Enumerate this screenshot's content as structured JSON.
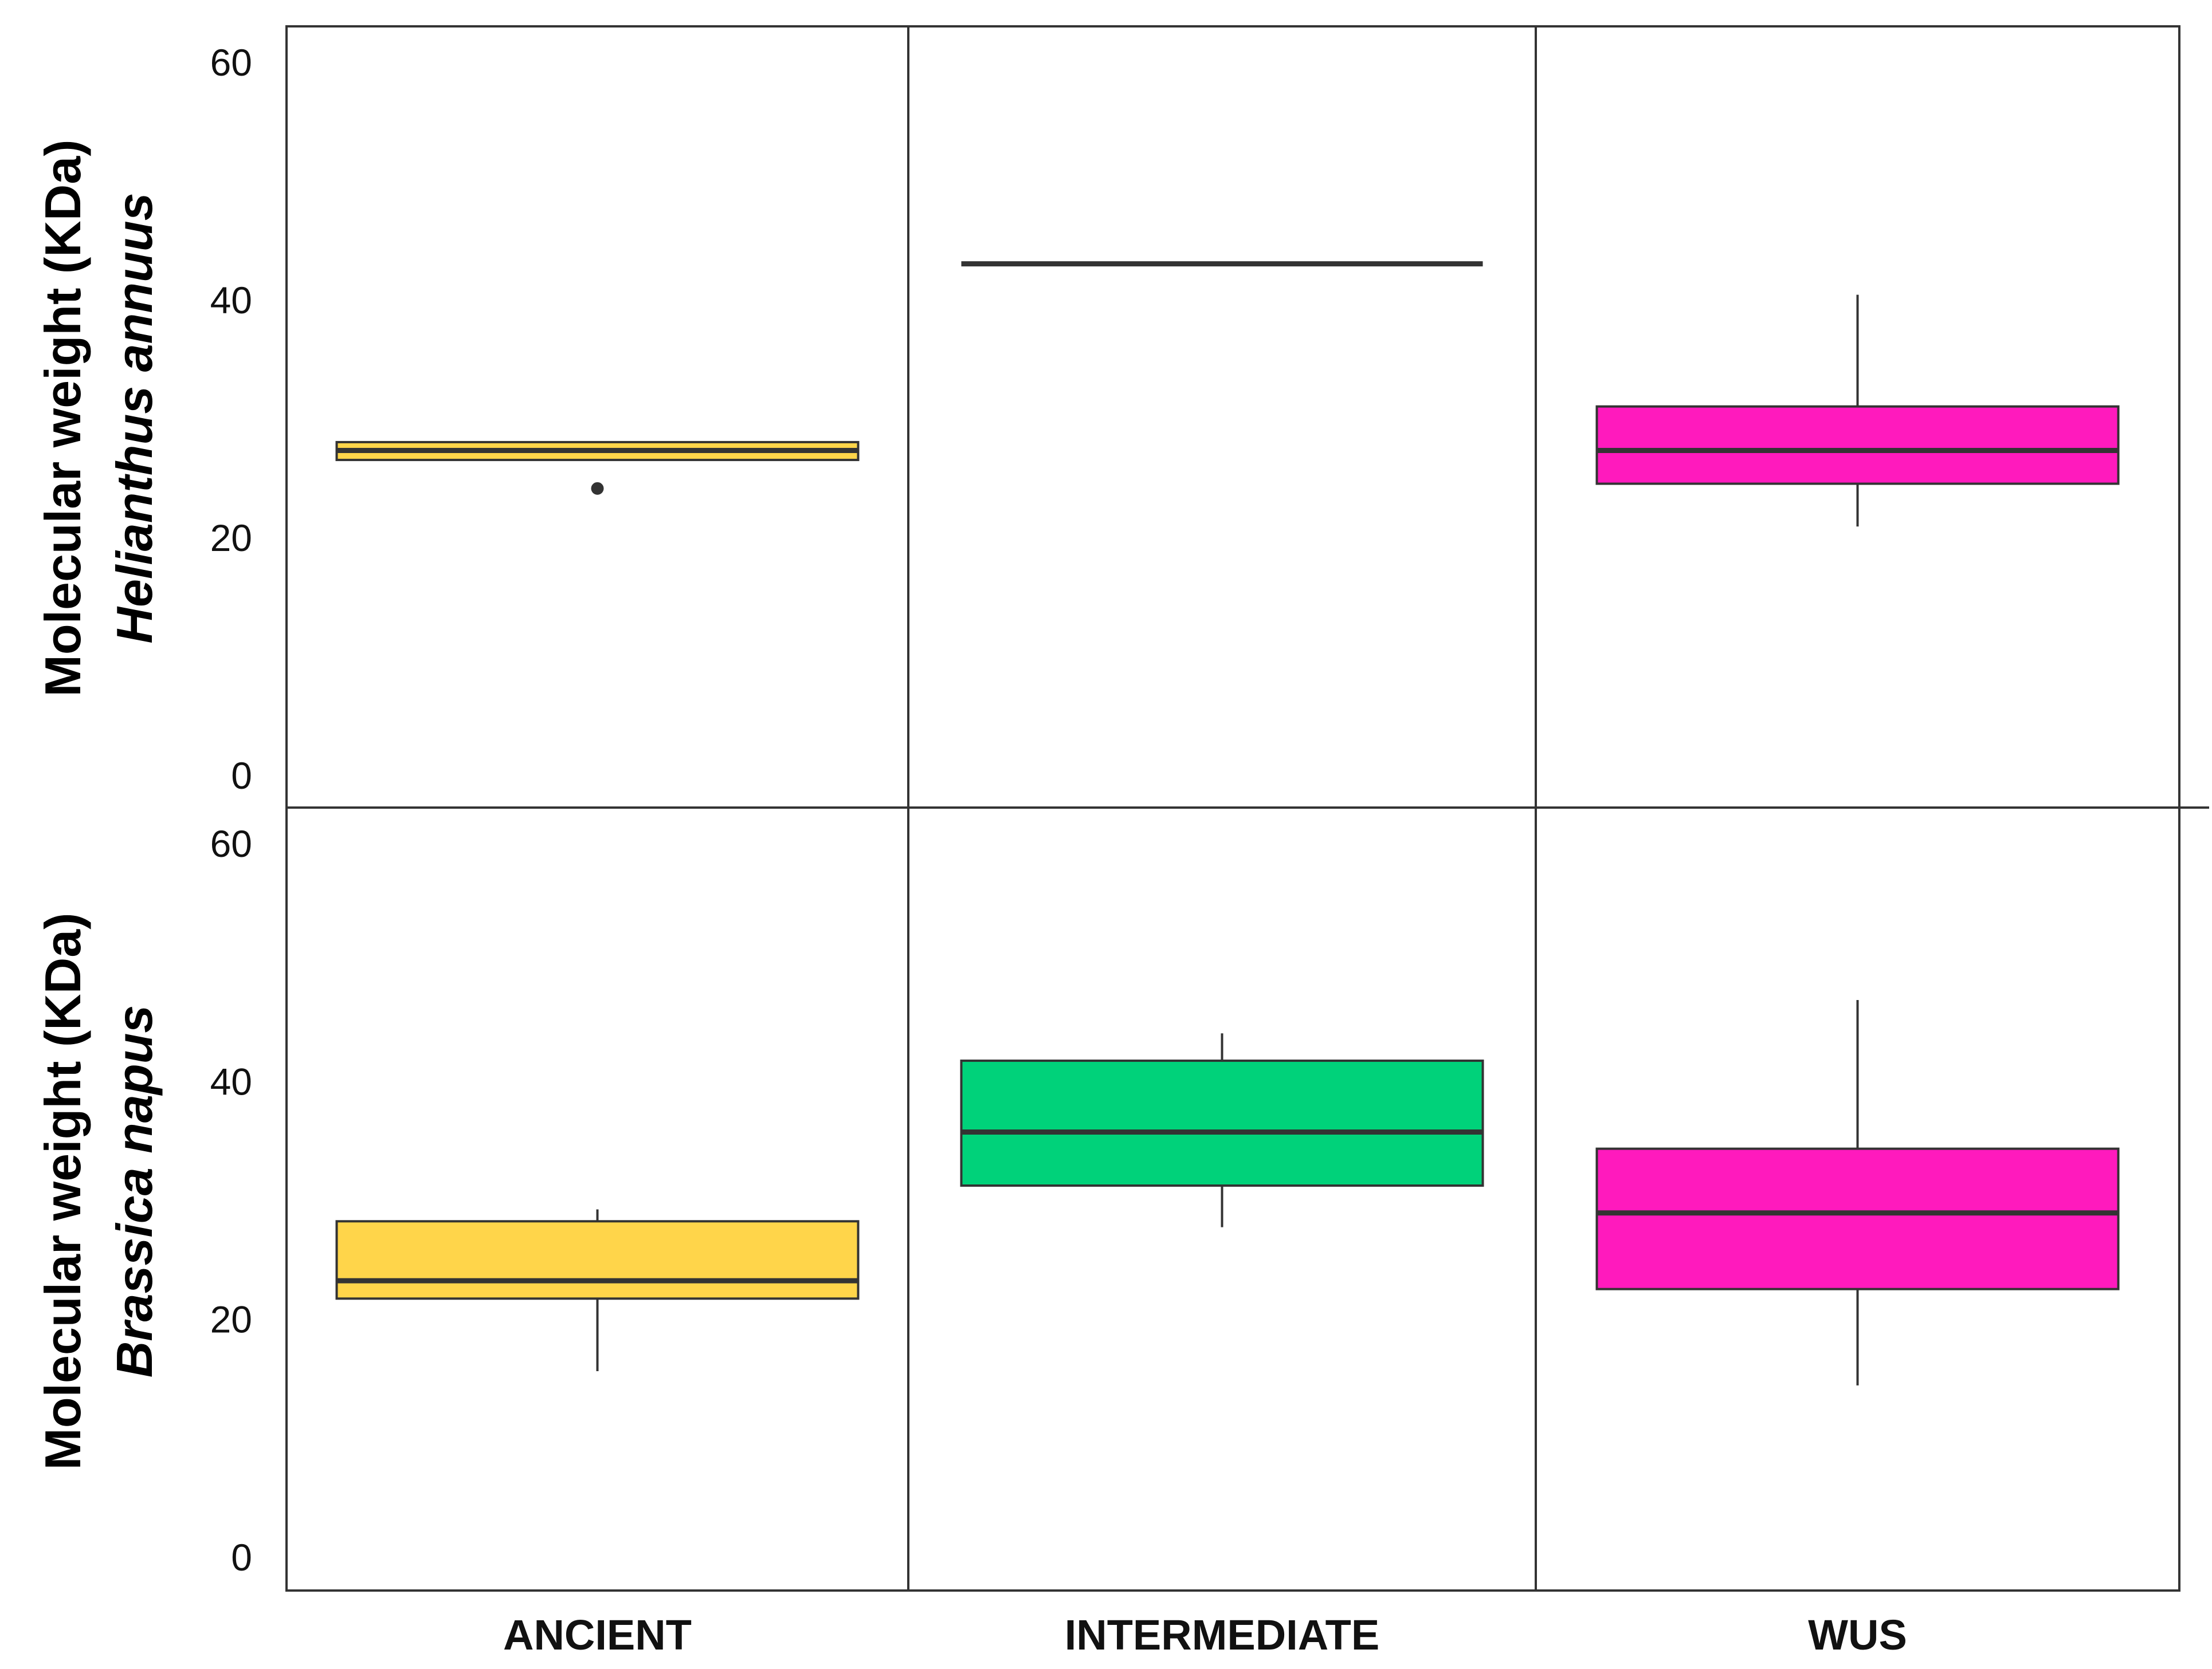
{
  "chart_data": {
    "type": "box",
    "categories": [
      "ANCIENT",
      "INTERMEDIATE",
      "WUS"
    ],
    "colors": {
      "ANCIENT": "#FFD54A",
      "INTERMEDIATE": "#00D27A",
      "WUS": "#FF1ABD"
    },
    "ylim": [
      0,
      63
    ],
    "yticks": [
      0,
      20,
      40,
      60
    ],
    "grid": false,
    "panels": [
      {
        "ylabel": "Molecular weight (KDa)",
        "species": "Helianthus annuus",
        "boxes": [
          {
            "category": "ANCIENT",
            "min": 26.6,
            "q1": 26.6,
            "median": 27.4,
            "q3": 28.1,
            "max": 28.1,
            "outliers": [
              24.2
            ]
          },
          {
            "category": "INTERMEDIATE",
            "min": 43.1,
            "q1": 43.1,
            "median": 43.1,
            "q3": 43.1,
            "max": 43.1,
            "outliers": []
          },
          {
            "category": "WUS",
            "min": 21.0,
            "q1": 24.6,
            "median": 27.4,
            "q3": 31.1,
            "max": 40.5,
            "outliers": []
          }
        ]
      },
      {
        "ylabel": "Molecular weight (KDa)",
        "species": "Brassica napus",
        "boxes": [
          {
            "category": "ANCIENT",
            "min": 15.7,
            "q1": 21.8,
            "median": 23.3,
            "q3": 28.3,
            "max": 29.3,
            "outliers": []
          },
          {
            "category": "INTERMEDIATE",
            "min": 27.8,
            "q1": 31.3,
            "median": 35.8,
            "q3": 41.8,
            "max": 44.1,
            "outliers": []
          },
          {
            "category": "WUS",
            "min": 14.5,
            "q1": 22.6,
            "median": 29.0,
            "q3": 34.4,
            "max": 46.9,
            "outliers": []
          }
        ]
      }
    ]
  }
}
